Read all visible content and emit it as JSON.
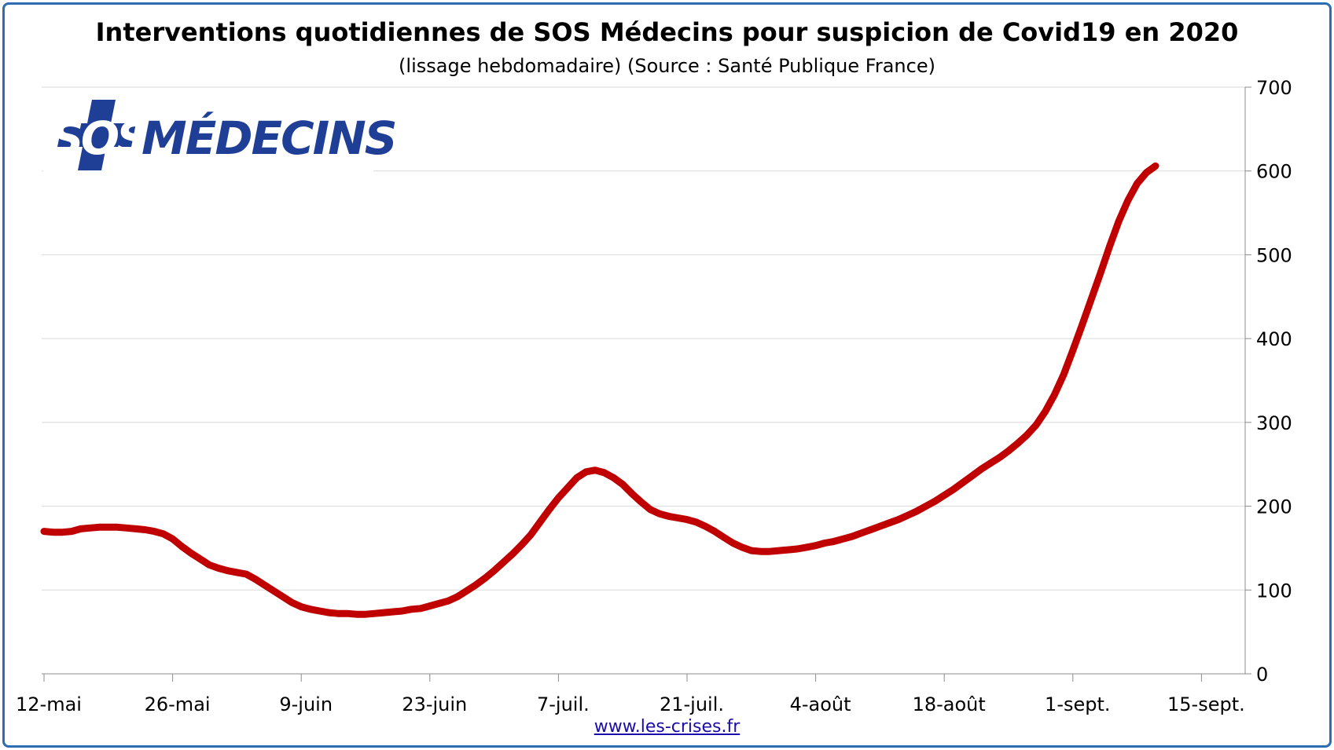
{
  "title": "Interventions quotidiennes de SOS Médecins pour suspicion de Covid19 en 2020",
  "subtitle": "(lissage hebdomadaire) (Source : Santé Publique France)",
  "logo": {
    "text_sos": "SOS",
    "text_medecins": "MÉDECINS",
    "brand_color": "#1f3e96"
  },
  "footer": {
    "link_text": "www.les-crises.fr"
  },
  "chart_data": {
    "type": "line",
    "xlabel": "",
    "ylabel": "",
    "ylim": [
      0,
      700
    ],
    "y_ticks": [
      0,
      100,
      200,
      300,
      400,
      500,
      600,
      700
    ],
    "y_axis_side": "right",
    "grid": true,
    "line_color": "#c00000",
    "x_tick_labels": [
      "12-mai",
      "26-mai",
      "9-juin",
      "23-juin",
      "7-juil.",
      "21-juil.",
      "4-août",
      "18-août",
      "1-sept.",
      "15-sept."
    ],
    "x_start": "12-mai",
    "series": [
      {
        "values": [
          170,
          169,
          169,
          170,
          173,
          174,
          175,
          175,
          175,
          174,
          173,
          172,
          170,
          167,
          161,
          152,
          144,
          137,
          130,
          126,
          123,
          121,
          119,
          113,
          106,
          99,
          92,
          85,
          80,
          77,
          75,
          73,
          72,
          72,
          71,
          71,
          72,
          73,
          74,
          75,
          77,
          78,
          81,
          84,
          87,
          92,
          99,
          106,
          114,
          123,
          133,
          143,
          154,
          166,
          181,
          196,
          210,
          222,
          234,
          241,
          243,
          240,
          234,
          226,
          215,
          205,
          196,
          191,
          188,
          186,
          184,
          181,
          176,
          170,
          163,
          156,
          151,
          147,
          146,
          146,
          147,
          148,
          149,
          151,
          153,
          156,
          158,
          161,
          164,
          168,
          172,
          176,
          180,
          184,
          189,
          194,
          200,
          206,
          213,
          220,
          228,
          236,
          244,
          251,
          258,
          266,
          275,
          285,
          297,
          313,
          333,
          357,
          386,
          416,
          447,
          478,
          510,
          540,
          565,
          585,
          598,
          606
        ]
      }
    ]
  }
}
